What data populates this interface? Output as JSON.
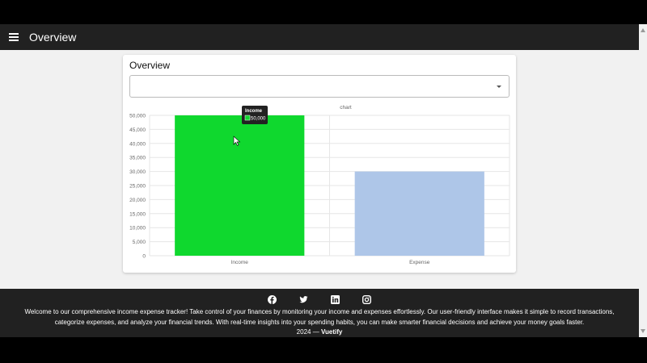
{
  "appbar": {
    "title": "Overview"
  },
  "card": {
    "title": "Overview",
    "select_value": ""
  },
  "chart_data": {
    "type": "bar",
    "title": "",
    "legend": "chart",
    "categories": [
      "Income",
      "Expense"
    ],
    "values": [
      50000,
      30000
    ],
    "colors": [
      "#0fd82e",
      "#aec6e8"
    ],
    "ylim": [
      0,
      50000
    ],
    "yticks": [
      0,
      5000,
      10000,
      15000,
      20000,
      25000,
      30000,
      35000,
      40000,
      45000,
      50000
    ],
    "grid": true,
    "tooltip": {
      "title": "Income",
      "value": "50,000"
    }
  },
  "footer": {
    "icons": [
      "facebook-icon",
      "twitter-icon",
      "linkedin-icon",
      "instagram-icon"
    ],
    "description": "Welcome to our comprehensive income expense tracker! Take control of your finances by monitoring your income and expenses effortlessly. Our user-friendly interface makes it simple to record transactions, categorize expenses, and analyze your financial trends. With real-time insights into your spending habits, you can make smarter financial decisions and achieve your money goals faster.",
    "year": "2024 —",
    "brand": "Vuetify"
  }
}
